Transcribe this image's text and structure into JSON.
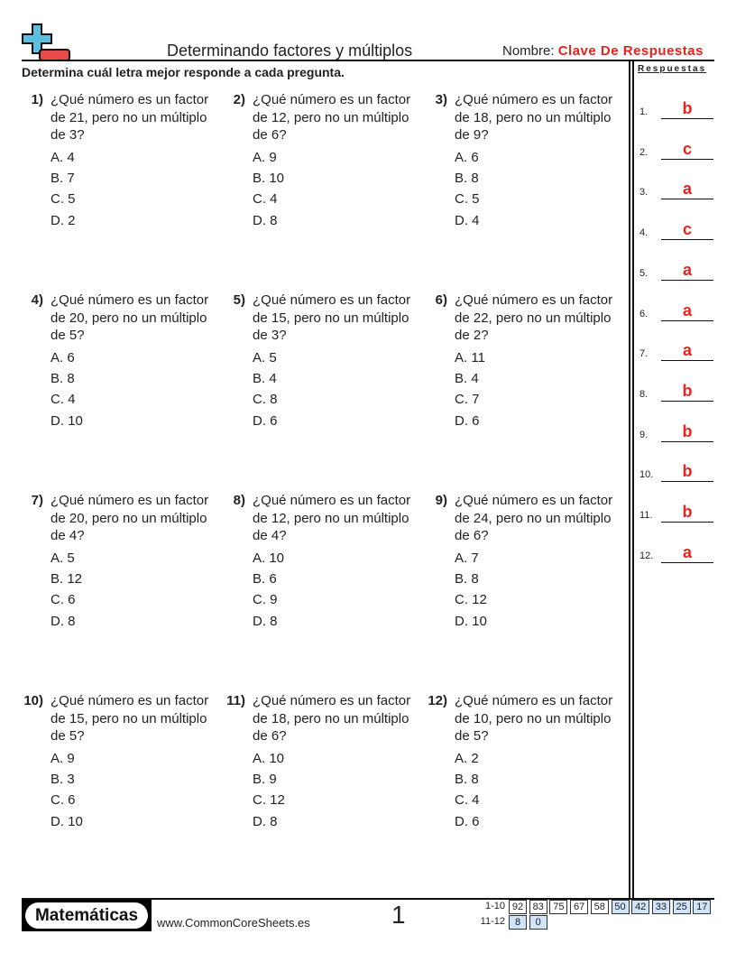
{
  "header": {
    "title": "Determinando factores y múltiplos",
    "name_label": "Nombre:",
    "name_value": "Clave De Respuestas",
    "instructions": "Determina cuál letra mejor responde a cada pregunta.",
    "answers_heading": "Respuestas"
  },
  "colors": {
    "accent_red": "#e8221f",
    "logo_blue": "#5bbfe0",
    "cell_blue": "#cfe3fb"
  },
  "questions": [
    {
      "num": "1)",
      "text": "¿Qué número es un factor de 21, pero no un múltiplo de 3?",
      "choices": [
        "A. 4",
        "B. 7",
        "C. 5",
        "D. 2"
      ]
    },
    {
      "num": "2)",
      "text": "¿Qué número es un factor de 12, pero no un múltiplo de 6?",
      "choices": [
        "A. 9",
        "B. 10",
        "C. 4",
        "D. 8"
      ]
    },
    {
      "num": "3)",
      "text": "¿Qué número es un factor de 18, pero no un múltiplo de 9?",
      "choices": [
        "A. 6",
        "B. 8",
        "C. 5",
        "D. 4"
      ]
    },
    {
      "num": "4)",
      "text": "¿Qué número es un factor de 20, pero no un múltiplo de 5?",
      "choices": [
        "A. 6",
        "B. 8",
        "C. 4",
        "D. 10"
      ]
    },
    {
      "num": "5)",
      "text": "¿Qué número es un factor de 15, pero no un múltiplo de 3?",
      "choices": [
        "A. 5",
        "B. 4",
        "C. 8",
        "D. 6"
      ]
    },
    {
      "num": "6)",
      "text": "¿Qué número es un factor de 22, pero no un múltiplo de 2?",
      "choices": [
        "A. 11",
        "B. 4",
        "C. 7",
        "D. 6"
      ]
    },
    {
      "num": "7)",
      "text": "¿Qué número es un factor de 20, pero no un múltiplo de 4?",
      "choices": [
        "A. 5",
        "B. 12",
        "C. 6",
        "D. 8"
      ]
    },
    {
      "num": "8)",
      "text": "¿Qué número es un factor de 12, pero no un múltiplo de 4?",
      "choices": [
        "A. 10",
        "B. 6",
        "C. 9",
        "D. 8"
      ]
    },
    {
      "num": "9)",
      "text": "¿Qué número es un factor de 24, pero no un múltiplo de 6?",
      "choices": [
        "A. 7",
        "B. 8",
        "C. 12",
        "D. 10"
      ]
    },
    {
      "num": "10)",
      "text": "¿Qué número es un factor de 15, pero no un múltiplo de 5?",
      "choices": [
        "A. 9",
        "B. 3",
        "C. 6",
        "D. 10"
      ]
    },
    {
      "num": "11)",
      "text": "¿Qué número es un factor de 18, pero no un múltiplo de 6?",
      "choices": [
        "A. 10",
        "B. 9",
        "C. 12",
        "D. 8"
      ]
    },
    {
      "num": "12)",
      "text": "¿Qué número es un factor de 10, pero no un múltiplo de 5?",
      "choices": [
        "A. 2",
        "B. 8",
        "C. 4",
        "D. 6"
      ]
    }
  ],
  "answers": [
    {
      "label": "1.",
      "value": "b"
    },
    {
      "label": "2.",
      "value": "c"
    },
    {
      "label": "3.",
      "value": "a"
    },
    {
      "label": "4.",
      "value": "c"
    },
    {
      "label": "5.",
      "value": "a"
    },
    {
      "label": "6.",
      "value": "a"
    },
    {
      "label": "7.",
      "value": "a"
    },
    {
      "label": "8.",
      "value": "b"
    },
    {
      "label": "9.",
      "value": "b"
    },
    {
      "label": "10.",
      "value": "b"
    },
    {
      "label": "11.",
      "value": "b"
    },
    {
      "label": "12.",
      "value": "a"
    }
  ],
  "footer": {
    "logo_text": "Matemáticas",
    "site": "www.CommonCoreSheets.es",
    "page": "1",
    "score_rows": [
      {
        "label": "1-10",
        "cells": [
          {
            "v": "92",
            "hl": false
          },
          {
            "v": "83",
            "hl": false
          },
          {
            "v": "75",
            "hl": false
          },
          {
            "v": "67",
            "hl": false
          },
          {
            "v": "58",
            "hl": false
          },
          {
            "v": "50",
            "hl": true
          },
          {
            "v": "42",
            "hl": true
          },
          {
            "v": "33",
            "hl": true
          },
          {
            "v": "25",
            "hl": true
          },
          {
            "v": "17",
            "hl": true
          }
        ]
      },
      {
        "label": "11-12",
        "cells": [
          {
            "v": "8",
            "hl": true
          },
          {
            "v": "0",
            "hl": true
          }
        ]
      }
    ]
  }
}
